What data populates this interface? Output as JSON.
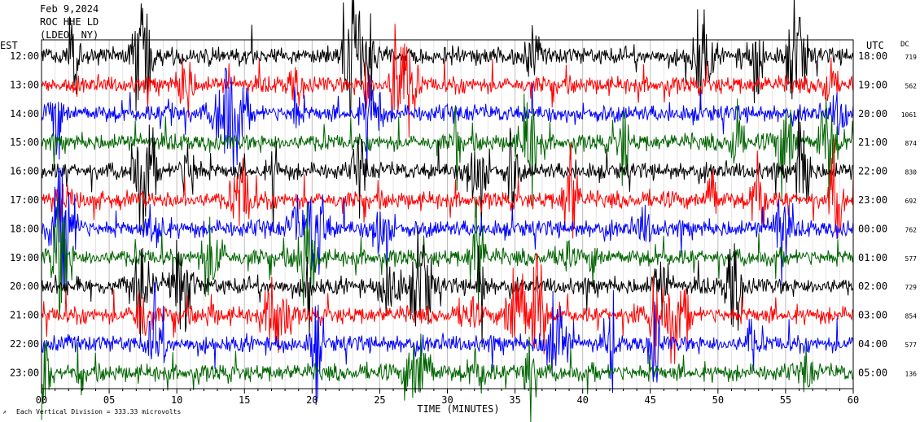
{
  "chart_data": {
    "type": "line",
    "title_lines": [
      "Feb 9,2024",
      "ROC HHE LD",
      "(LDEO, NY)"
    ],
    "left_axis_label": "EST",
    "right_axis_label": "UTC",
    "dc_label": "DC",
    "xlabel": "TIME (MINUTES)",
    "xlim": [
      0,
      60
    ],
    "x_ticks": [
      "00",
      "05",
      "10",
      "15",
      "20",
      "25",
      "30",
      "35",
      "40",
      "45",
      "50",
      "55",
      "60"
    ],
    "scale_note": "Each Vertical Division = 333.33 microvolts",
    "trace_colors": [
      "#000000",
      "#ff0000",
      "#0000ff",
      "#006400"
    ],
    "traces": [
      {
        "est": "12:00",
        "utc": "18:00",
        "dc": "719"
      },
      {
        "est": "13:00",
        "utc": "19:00",
        "dc": "562"
      },
      {
        "est": "14:00",
        "utc": "20:00",
        "dc": "1061"
      },
      {
        "est": "15:00",
        "utc": "21:00",
        "dc": "874"
      },
      {
        "est": "16:00",
        "utc": "22:00",
        "dc": "830"
      },
      {
        "est": "17:00",
        "utc": "23:00",
        "dc": "692"
      },
      {
        "est": "18:00",
        "utc": "00:00",
        "dc": "762"
      },
      {
        "est": "19:00",
        "utc": "01:00",
        "dc": "577"
      },
      {
        "est": "20:00",
        "utc": "02:00",
        "dc": "729"
      },
      {
        "est": "21:00",
        "utc": "03:00",
        "dc": "854"
      },
      {
        "est": "22:00",
        "utc": "04:00",
        "dc": "577"
      },
      {
        "est": "23:00",
        "utc": "05:00",
        "dc": "136"
      }
    ]
  }
}
